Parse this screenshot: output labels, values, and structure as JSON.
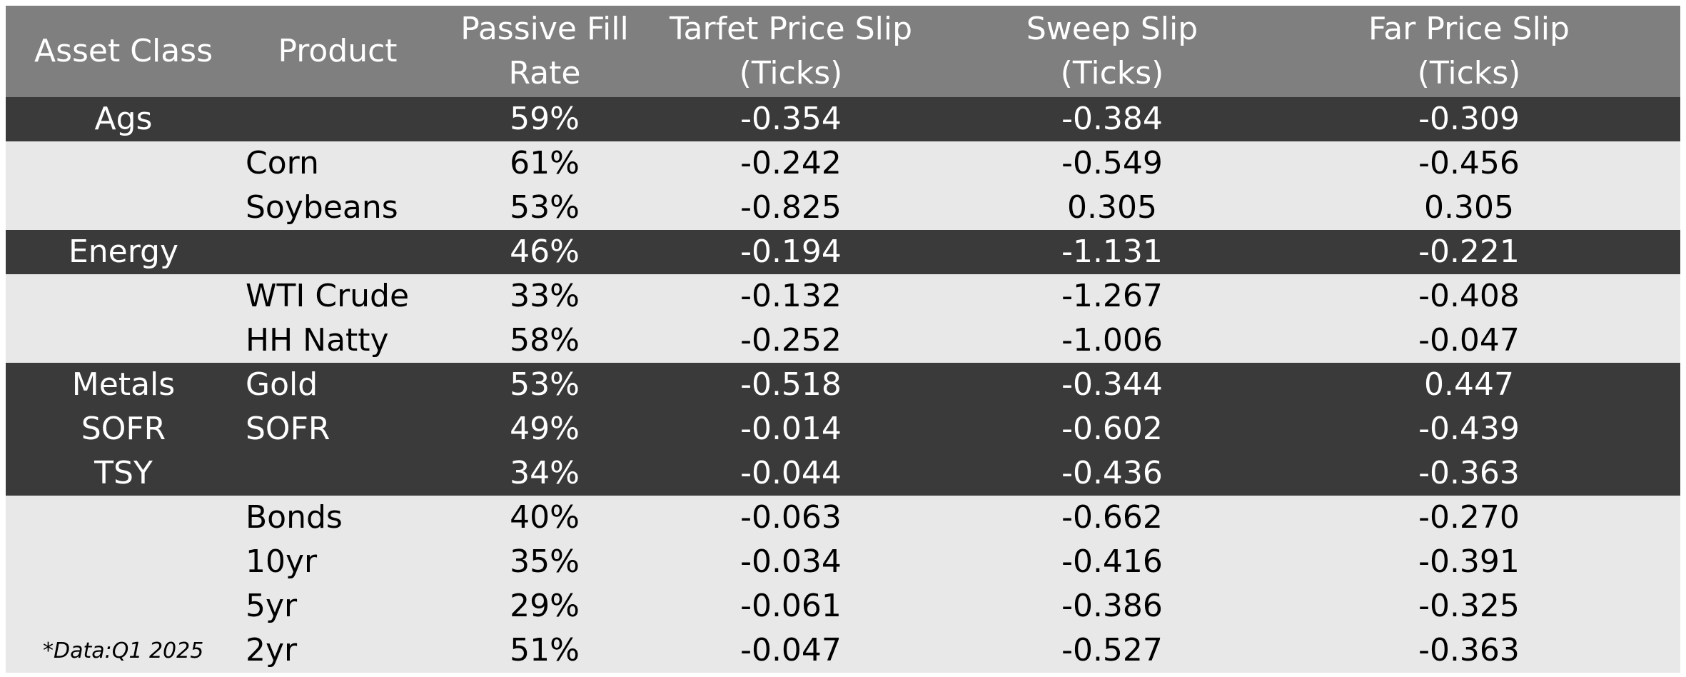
{
  "headers": {
    "asset_class": [
      "Asset Class"
    ],
    "product": [
      "Product"
    ],
    "passive_fill_rate": [
      "Passive Fill",
      "Rate"
    ],
    "target_price_slip": [
      "Tarfet Price Slip",
      "(Ticks)"
    ],
    "sweep_slip": [
      "Sweep Slip",
      "(Ticks)"
    ],
    "far_price_slip": [
      "Far Price Slip",
      "(Ticks)"
    ]
  },
  "rows": [
    {
      "style": "dark",
      "asset": "Ags",
      "product": "",
      "fill": "59%",
      "target": "-0.354",
      "sweep": "-0.384",
      "far": "-0.309"
    },
    {
      "style": "light",
      "asset": "",
      "product": "Corn",
      "fill": "61%",
      "target": "-0.242",
      "sweep": "-0.549",
      "far": "-0.456"
    },
    {
      "style": "light",
      "asset": "",
      "product": "Soybeans",
      "fill": "53%",
      "target": "-0.825",
      "sweep": "0.305",
      "far": "0.305"
    },
    {
      "style": "dark",
      "asset": "Energy",
      "product": "",
      "fill": "46%",
      "target": "-0.194",
      "sweep": "-1.131",
      "far": "-0.221"
    },
    {
      "style": "light",
      "asset": "",
      "product": "WTI Crude",
      "fill": "33%",
      "target": "-0.132",
      "sweep": "-1.267",
      "far": "-0.408"
    },
    {
      "style": "light",
      "asset": "",
      "product": "HH Natty",
      "fill": "58%",
      "target": "-0.252",
      "sweep": "-1.006",
      "far": "-0.047"
    },
    {
      "style": "dark",
      "asset": "Metals",
      "product": "Gold",
      "fill": "53%",
      "target": "-0.518",
      "sweep": "-0.344",
      "far": "0.447"
    },
    {
      "style": "dark",
      "asset": "SOFR",
      "product": "SOFR",
      "fill": "49%",
      "target": "-0.014",
      "sweep": "-0.602",
      "far": "-0.439"
    },
    {
      "style": "dark",
      "asset": "TSY",
      "product": "",
      "fill": "34%",
      "target": "-0.044",
      "sweep": "-0.436",
      "far": "-0.363"
    },
    {
      "style": "light",
      "asset": "",
      "product": "Bonds",
      "fill": "40%",
      "target": "-0.063",
      "sweep": "-0.662",
      "far": "-0.270"
    },
    {
      "style": "light",
      "asset": "",
      "product": "10yr",
      "fill": "35%",
      "target": "-0.034",
      "sweep": "-0.416",
      "far": "-0.391"
    },
    {
      "style": "light",
      "asset": "",
      "product": "5yr",
      "fill": "29%",
      "target": "-0.061",
      "sweep": "-0.386",
      "far": "-0.325"
    },
    {
      "style": "light",
      "asset": "",
      "product": "2yr",
      "fill": "51%",
      "target": "-0.047",
      "sweep": "-0.527",
      "far": "-0.363"
    }
  ],
  "footnote": "*Data:Q1 2025",
  "colors": {
    "header_bg": "#7f7f7f",
    "dark_row_bg": "#3a3a3a",
    "light_row_bg": "#e8e8e8"
  }
}
